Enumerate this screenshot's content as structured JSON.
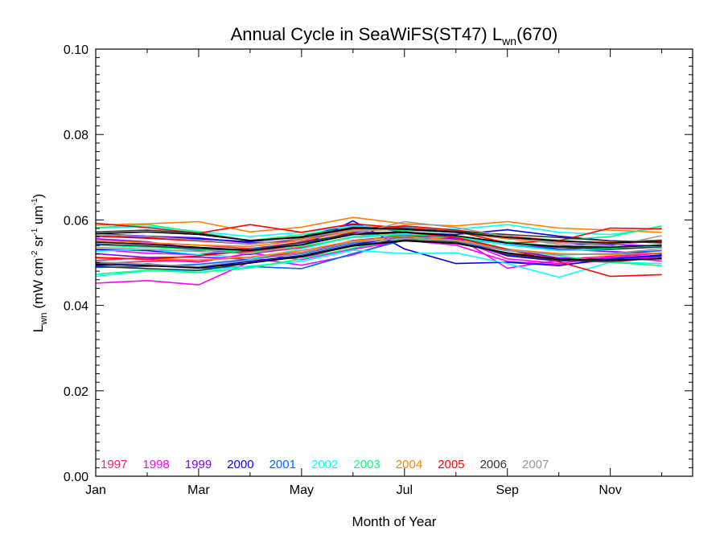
{
  "chart_data": {
    "type": "line",
    "title": {
      "main": "Annual Cycle in SeaWiFS(ST47) L",
      "sub": "wn",
      "tail": "(670)"
    },
    "xlabel": "Month of Year",
    "ylabel": {
      "L": "L",
      "sub": "wn",
      "rest": " (mW cm",
      "sup1": "-2",
      "sr": " sr",
      "sup2": "-1",
      "um": " um",
      "sup3": "-1",
      "close": ")"
    },
    "xlim": [
      1,
      12.6
    ],
    "ylim": [
      0,
      0.1
    ],
    "xticks": [
      {
        "x": 1,
        "label": "Jan"
      },
      {
        "x": 3,
        "label": "Mar"
      },
      {
        "x": 5,
        "label": "May"
      },
      {
        "x": 7,
        "label": "Jul"
      },
      {
        "x": 9,
        "label": "Sep"
      },
      {
        "x": 11,
        "label": "Nov"
      }
    ],
    "yticks": [
      {
        "y": 0.0,
        "label": "0.00"
      },
      {
        "y": 0.02,
        "label": "0.02"
      },
      {
        "y": 0.04,
        "label": "0.04"
      },
      {
        "y": 0.06,
        "label": "0.06"
      },
      {
        "y": 0.08,
        "label": "0.08"
      },
      {
        "y": 0.1,
        "label": "0.10"
      }
    ],
    "grid": false,
    "legend_placement": "bottom-left",
    "x": [
      1,
      2,
      3,
      4,
      5,
      6,
      7,
      8,
      9,
      10,
      11,
      12
    ],
    "series": [
      {
        "name": "1997",
        "color": "#ff1a66",
        "values": [
          0.0505,
          0.0512,
          0.0502,
          0.0521,
          0.0535,
          0.0561,
          0.0572,
          0.0558,
          0.0532,
          0.0508,
          0.0515,
          0.0522
        ]
      },
      {
        "name": "1997",
        "color": "#ff1a66",
        "values": [
          0.0552,
          0.0546,
          0.0541,
          0.0533,
          0.0548,
          0.0579,
          0.0584,
          0.0571,
          0.0556,
          0.0549,
          0.0543,
          0.0551
        ]
      },
      {
        "name": "1997",
        "color": "#ff1a66",
        "values": [
          0.0498,
          0.0503,
          0.0506,
          0.0512,
          0.0524,
          0.0548,
          0.0566,
          0.0552,
          0.0521,
          0.0505,
          0.0501,
          0.0512
        ]
      },
      {
        "name": "1998",
        "color": "#ff00ff",
        "values": [
          0.0452,
          0.0458,
          0.0448,
          0.0502,
          0.0513,
          0.0531,
          0.0552,
          0.0541,
          0.0503,
          0.0495,
          0.0506,
          0.0513
        ]
      },
      {
        "name": "1998",
        "color": "#ff00ff",
        "values": [
          0.0531,
          0.0522,
          0.0519,
          0.0511,
          0.0494,
          0.0518,
          0.0558,
          0.0562,
          0.0487,
          0.0506,
          0.0511,
          0.0523
        ]
      },
      {
        "name": "1998",
        "color": "#ff00ff",
        "values": [
          0.0512,
          0.0508,
          0.0501,
          0.0522,
          0.0507,
          0.0532,
          0.0561,
          0.0556,
          0.0509,
          0.0498,
          0.0513,
          0.0504
        ]
      },
      {
        "name": "1999",
        "color": "#7f00ff",
        "values": [
          0.0556,
          0.0549,
          0.0532,
          0.0519,
          0.0541,
          0.0572,
          0.0569,
          0.0562,
          0.0548,
          0.0532,
          0.0526,
          0.0521
        ]
      },
      {
        "name": "1999",
        "color": "#7f00ff",
        "values": [
          0.0521,
          0.0512,
          0.0513,
          0.0508,
          0.0522,
          0.0552,
          0.0563,
          0.0558,
          0.0531,
          0.0511,
          0.0508,
          0.0518
        ]
      },
      {
        "name": "1999",
        "color": "#7f00ff",
        "values": [
          0.0568,
          0.0562,
          0.0558,
          0.0546,
          0.0551,
          0.0581,
          0.0583,
          0.0572,
          0.0559,
          0.0547,
          0.0542,
          0.0539
        ]
      },
      {
        "name": "2000",
        "color": "#0000ff",
        "values": [
          0.0531,
          0.0528,
          0.0519,
          0.0527,
          0.0538,
          0.0598,
          0.0532,
          0.0498,
          0.0501,
          0.0493,
          0.0509,
          0.0518
        ]
      },
      {
        "name": "2000",
        "color": "#0000ff",
        "values": [
          0.0562,
          0.0559,
          0.0556,
          0.0549,
          0.0561,
          0.0589,
          0.0571,
          0.0566,
          0.0577,
          0.0562,
          0.0551,
          0.0548
        ]
      },
      {
        "name": "2000",
        "color": "#0000ff",
        "values": [
          0.0493,
          0.0497,
          0.0489,
          0.0503,
          0.0517,
          0.0542,
          0.0561,
          0.0554,
          0.0516,
          0.0504,
          0.0509,
          0.0516
        ]
      },
      {
        "name": "2001",
        "color": "#0066ff",
        "values": [
          0.0501,
          0.0493,
          0.0487,
          0.0491,
          0.0486,
          0.0521,
          0.0553,
          0.0561,
          0.0546,
          0.0538,
          0.0549,
          0.0553
        ]
      },
      {
        "name": "2001",
        "color": "#0066ff",
        "values": [
          0.0544,
          0.0538,
          0.0529,
          0.0532,
          0.0546,
          0.0566,
          0.0572,
          0.0558,
          0.0542,
          0.0531,
          0.0536,
          0.0541
        ]
      },
      {
        "name": "2001",
        "color": "#0066ff",
        "values": [
          0.0489,
          0.0491,
          0.0496,
          0.0508,
          0.0521,
          0.0546,
          0.0559,
          0.0549,
          0.0528,
          0.0519,
          0.0521,
          0.0528
        ]
      },
      {
        "name": "2002",
        "color": "#00ffff",
        "values": [
          0.0468,
          0.0481,
          0.0481,
          0.0492,
          0.0503,
          0.0529,
          0.0521,
          0.0523,
          0.0498,
          0.0466,
          0.0501,
          0.0498
        ]
      },
      {
        "name": "2002",
        "color": "#00ffff",
        "values": [
          0.0581,
          0.0585,
          0.0573,
          0.0561,
          0.0571,
          0.0586,
          0.0582,
          0.0578,
          0.0589,
          0.0571,
          0.0566,
          0.0581
        ]
      },
      {
        "name": "2002",
        "color": "#00ffff",
        "values": [
          0.0527,
          0.0531,
          0.0519,
          0.0509,
          0.0532,
          0.0561,
          0.0568,
          0.0561,
          0.0541,
          0.0528,
          0.0531,
          0.0538
        ]
      },
      {
        "name": "2003",
        "color": "#00ff7f",
        "values": [
          0.0473,
          0.0482,
          0.0477,
          0.0488,
          0.0509,
          0.0534,
          0.0556,
          0.0561,
          0.0532,
          0.0516,
          0.0501,
          0.0493
        ]
      },
      {
        "name": "2003",
        "color": "#00ff7f",
        "values": [
          0.0582,
          0.0589,
          0.0571,
          0.0552,
          0.0566,
          0.0581,
          0.0575,
          0.0572,
          0.0561,
          0.0553,
          0.0561,
          0.0586
        ]
      },
      {
        "name": "2003",
        "color": "#00ff7f",
        "values": [
          0.0541,
          0.0536,
          0.0531,
          0.0524,
          0.0538,
          0.0559,
          0.0566,
          0.0561,
          0.0549,
          0.0538,
          0.0533,
          0.0542
        ]
      },
      {
        "name": "2004",
        "color": "#ff8000",
        "values": [
          0.0588,
          0.0591,
          0.0596,
          0.0572,
          0.0583,
          0.0606,
          0.0591,
          0.0586,
          0.0596,
          0.0581,
          0.0576,
          0.0571
        ]
      },
      {
        "name": "2004",
        "color": "#ff8000",
        "values": [
          0.0551,
          0.0547,
          0.0541,
          0.0538,
          0.0552,
          0.0573,
          0.0579,
          0.0571,
          0.0556,
          0.0546,
          0.0549,
          0.0552
        ]
      },
      {
        "name": "2004",
        "color": "#ff8000",
        "values": [
          0.0511,
          0.0509,
          0.0506,
          0.0513,
          0.0528,
          0.0551,
          0.0562,
          0.0553,
          0.0531,
          0.0521,
          0.0519,
          0.0523
        ]
      },
      {
        "name": "2005",
        "color": "#ff0000",
        "values": [
          0.0592,
          0.0582,
          0.0569,
          0.0589,
          0.0571,
          0.0591,
          0.0581,
          0.0573,
          0.0546,
          0.0551,
          0.0581,
          0.0579
        ]
      },
      {
        "name": "2005",
        "color": "#ff0000",
        "values": [
          0.0512,
          0.0508,
          0.0516,
          0.0527,
          0.0541,
          0.0566,
          0.0571,
          0.0559,
          0.0531,
          0.0502,
          0.0468,
          0.0472
        ]
      },
      {
        "name": "2005",
        "color": "#ff0000",
        "values": [
          0.0562,
          0.0557,
          0.0551,
          0.0543,
          0.0556,
          0.0579,
          0.0586,
          0.0576,
          0.0562,
          0.0551,
          0.0546,
          0.0549
        ]
      },
      {
        "name": "2006",
        "color": "#333333",
        "values": [
          0.0572,
          0.0576,
          0.0569,
          0.0551,
          0.0561,
          0.0583,
          0.0579,
          0.0573,
          0.0566,
          0.0559,
          0.0551,
          0.0546
        ]
      },
      {
        "name": "2006",
        "color": "#333333",
        "values": [
          0.0491,
          0.0486,
          0.0482,
          0.0499,
          0.0516,
          0.0541,
          0.0553,
          0.0548,
          0.0519,
          0.0506,
          0.0503,
          0.0511
        ]
      },
      {
        "name": "2006",
        "color": "#333333",
        "values": [
          0.0543,
          0.0539,
          0.0533,
          0.0528,
          0.0547,
          0.0569,
          0.0572,
          0.0563,
          0.0546,
          0.0536,
          0.0531,
          0.0537
        ]
      },
      {
        "name": "2007",
        "color": "#999999",
        "values": [
          0.0536,
          0.0531,
          0.0526,
          0.0521,
          0.0541,
          0.0566,
          0.0596,
          0.0582,
          0.0561,
          0.0542,
          0.0538,
          0.0563
        ]
      },
      {
        "name": "2007",
        "color": "#999999",
        "values": [
          0.0502,
          0.0496,
          0.0491,
          0.0506,
          0.0523,
          0.0548,
          0.0557,
          0.0551,
          0.0529,
          0.0518,
          0.0521,
          0.0533
        ]
      },
      {
        "name": "2007",
        "color": "#999999",
        "values": [
          0.0566,
          0.0561,
          0.0553,
          0.0543,
          0.0557,
          0.0576,
          0.0578,
          0.0571,
          0.0558,
          0.0547,
          0.0545,
          0.0551
        ]
      }
    ],
    "overlays": [
      {
        "color": "#000000",
        "values": [
          0.0568,
          0.0572,
          0.0566,
          0.0552,
          0.0559,
          0.0581,
          0.0578,
          0.0571,
          0.0559,
          0.0551,
          0.0546,
          0.0551
        ]
      },
      {
        "color": "#000000",
        "values": [
          0.0548,
          0.0543,
          0.0536,
          0.0529,
          0.0542,
          0.0566,
          0.0571,
          0.0563,
          0.0546,
          0.0538,
          0.0536,
          0.0541
        ]
      },
      {
        "color": "#000000",
        "values": [
          0.0496,
          0.0493,
          0.0488,
          0.0499,
          0.0514,
          0.0539,
          0.0551,
          0.0545,
          0.0523,
          0.0508,
          0.0506,
          0.0509
        ]
      }
    ],
    "legend": [
      {
        "label": "1997",
        "color": "#ff1a66"
      },
      {
        "label": "1998",
        "color": "#ff00ff"
      },
      {
        "label": "1999",
        "color": "#7f00ff"
      },
      {
        "label": "2000",
        "color": "#0000ff"
      },
      {
        "label": "2001",
        "color": "#0066ff"
      },
      {
        "label": "2002",
        "color": "#00ffff"
      },
      {
        "label": "2003",
        "color": "#00ff7f"
      },
      {
        "label": "2004",
        "color": "#ff8000"
      },
      {
        "label": "2005",
        "color": "#ff0000"
      },
      {
        "label": "2006",
        "color": "#333333"
      },
      {
        "label": "2007",
        "color": "#999999"
      }
    ]
  }
}
